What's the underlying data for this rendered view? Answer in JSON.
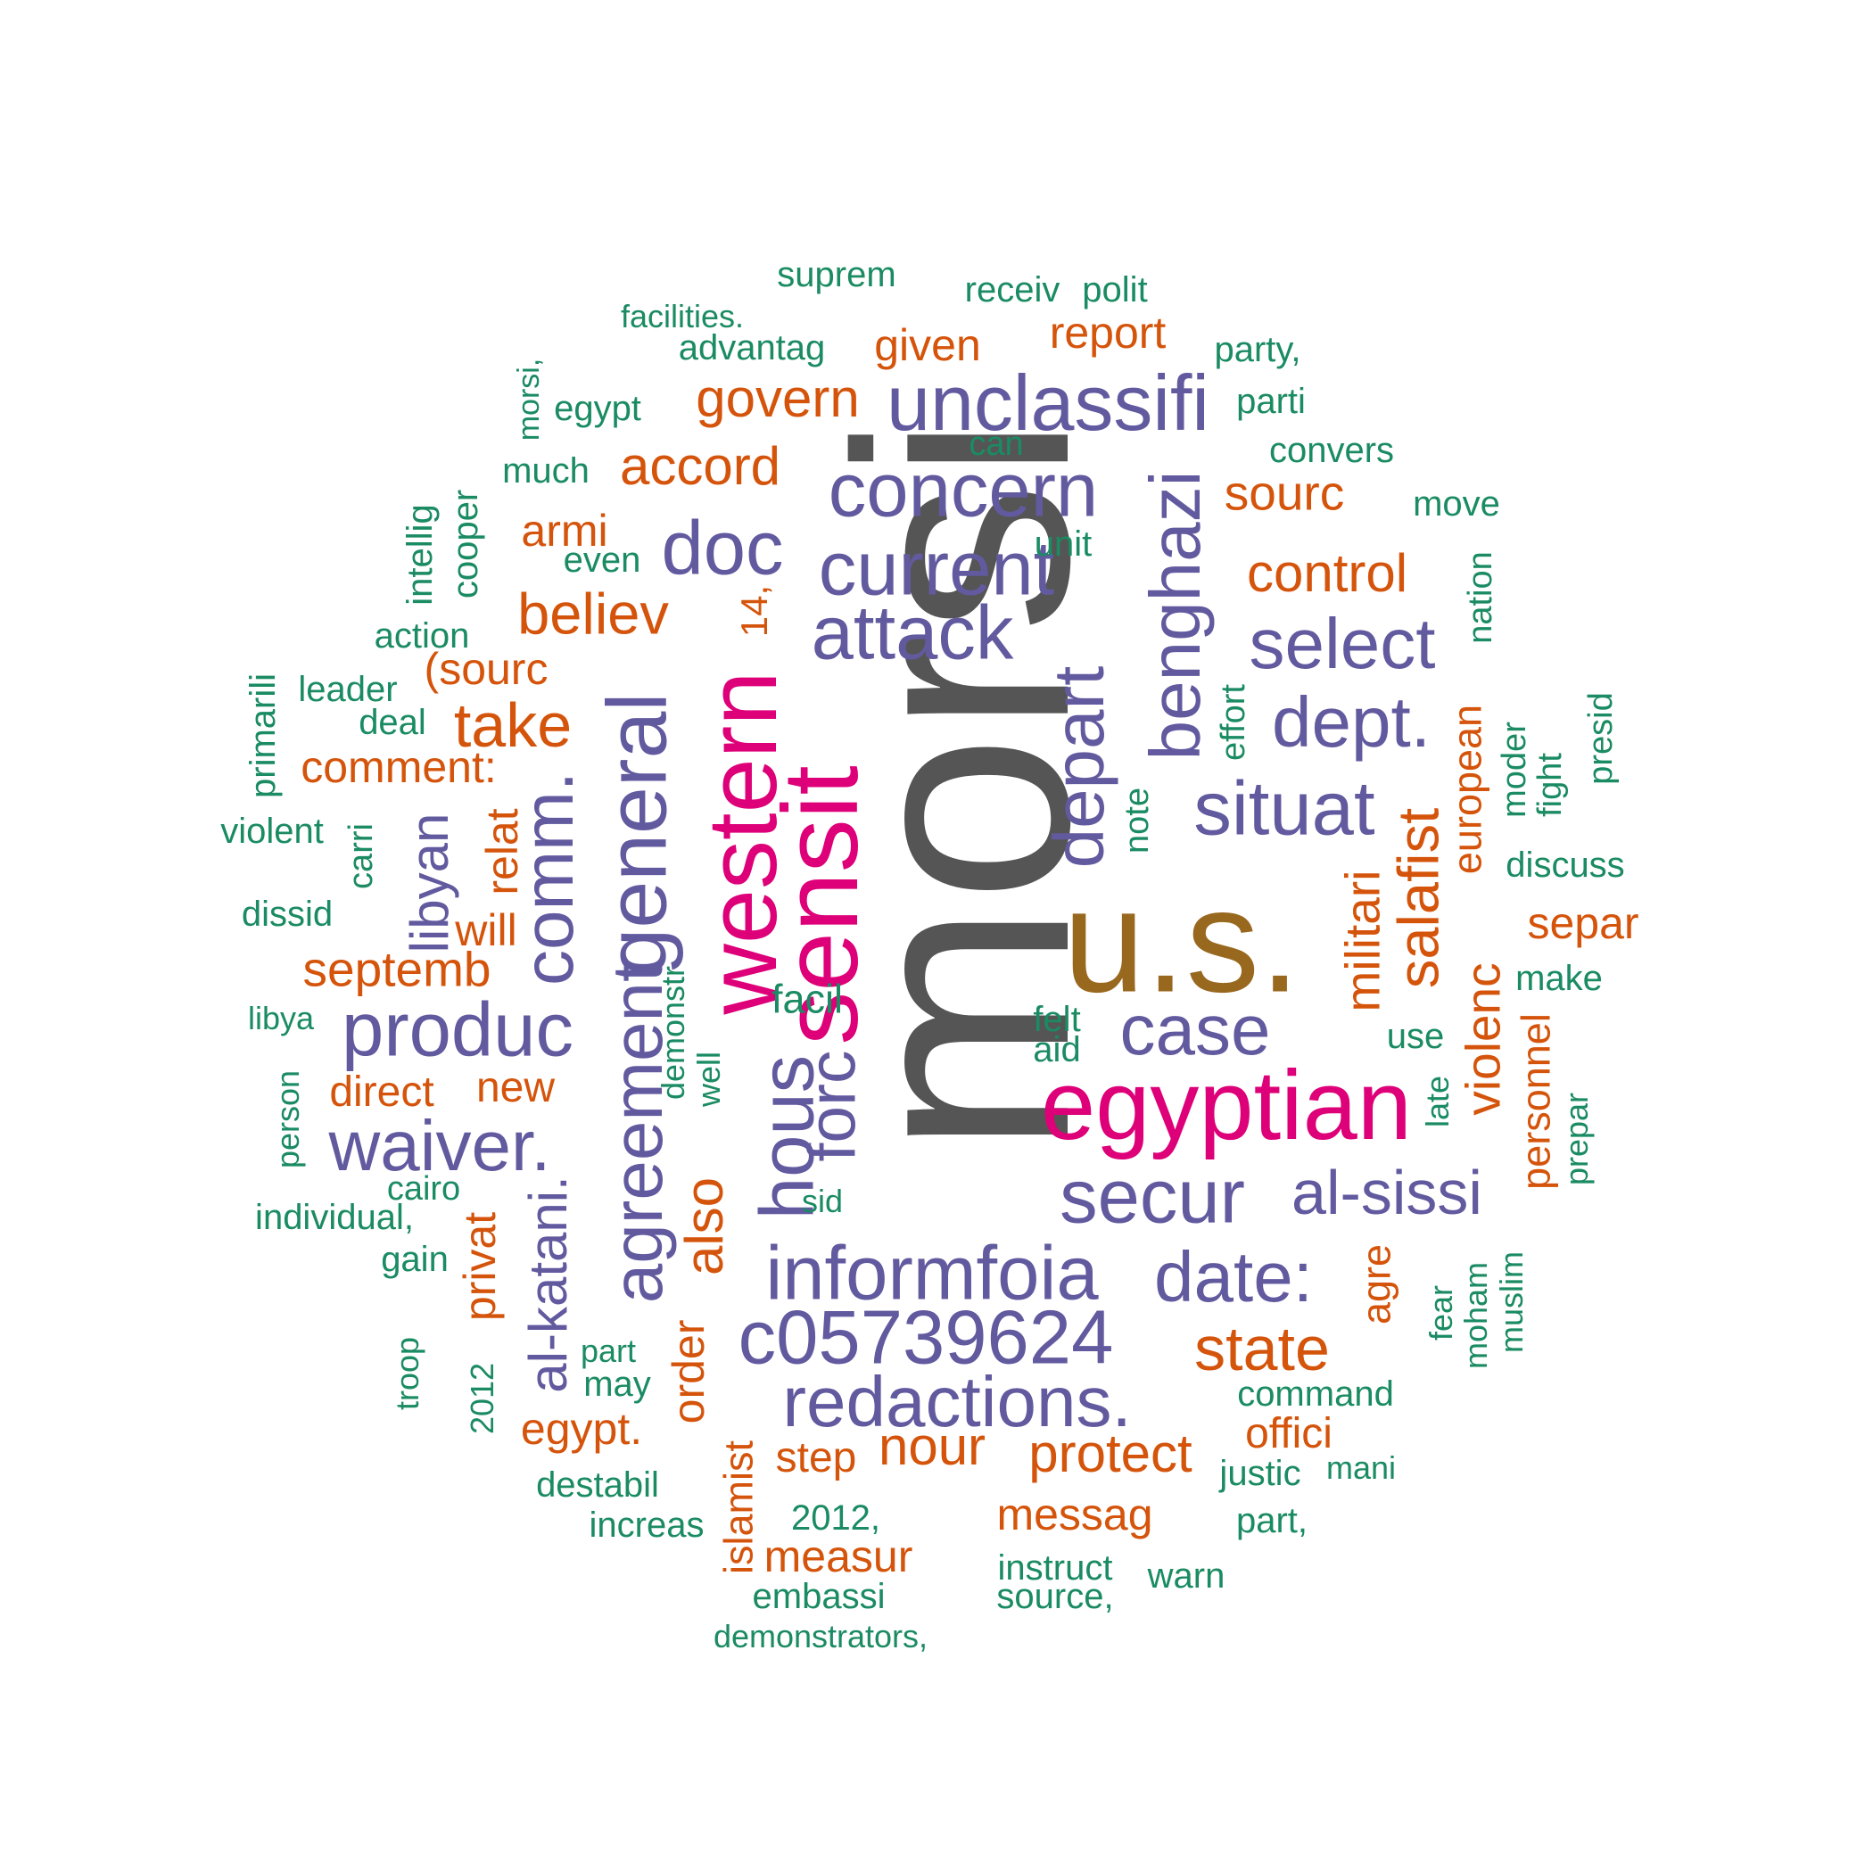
{
  "colors": {
    "gray": "#555555",
    "brown": "#98681E",
    "magenta": "#DE0079",
    "purple": "#625A9F",
    "orange": "#D5540B",
    "green": "#1A8B63"
  },
  "words": [
    {
      "text": "morsi",
      "color": "gray",
      "vertical": true
    },
    {
      "text": "u.s.",
      "color": "brown",
      "vertical": false
    },
    {
      "text": "egyptian",
      "color": "magenta",
      "vertical": false
    },
    {
      "text": "sensit",
      "color": "magenta",
      "vertical": true
    },
    {
      "text": "western",
      "color": "magenta",
      "vertical": true
    },
    {
      "text": "general",
      "color": "purple",
      "vertical": true
    },
    {
      "text": "agreement",
      "color": "purple",
      "vertical": true
    },
    {
      "text": "comm.",
      "color": "purple",
      "vertical": true
    },
    {
      "text": "unclassifi",
      "color": "purple",
      "vertical": false
    },
    {
      "text": "concern",
      "color": "purple",
      "vertical": false
    },
    {
      "text": "current",
      "color": "purple",
      "vertical": false
    },
    {
      "text": "attack",
      "color": "purple",
      "vertical": false
    },
    {
      "text": "benghazi",
      "color": "purple",
      "vertical": true
    },
    {
      "text": "depart",
      "color": "purple",
      "vertical": true
    },
    {
      "text": "situat",
      "color": "purple",
      "vertical": false
    },
    {
      "text": "select",
      "color": "purple",
      "vertical": false
    },
    {
      "text": "dept.",
      "color": "purple",
      "vertical": false
    },
    {
      "text": "doc",
      "color": "purple",
      "vertical": false
    },
    {
      "text": "produc",
      "color": "purple",
      "vertical": false
    },
    {
      "text": "waiver.",
      "color": "purple",
      "vertical": false
    },
    {
      "text": "hous",
      "color": "purple",
      "vertical": true
    },
    {
      "text": "forc",
      "color": "purple",
      "vertical": true
    },
    {
      "text": "case",
      "color": "purple",
      "vertical": false
    },
    {
      "text": "secur",
      "color": "purple",
      "vertical": false
    },
    {
      "text": "al-sissi",
      "color": "purple",
      "vertical": false
    },
    {
      "text": "informfoia",
      "color": "purple",
      "vertical": false
    },
    {
      "text": "date:",
      "color": "purple",
      "vertical": false
    },
    {
      "text": "c05739624",
      "color": "purple",
      "vertical": false
    },
    {
      "text": "redactions.",
      "color": "purple",
      "vertical": false
    },
    {
      "text": "al-katani.",
      "color": "purple",
      "vertical": true
    },
    {
      "text": "libyan",
      "color": "purple",
      "vertical": true
    },
    {
      "text": "govern",
      "color": "orange",
      "vertical": false
    },
    {
      "text": "accord",
      "color": "orange",
      "vertical": false
    },
    {
      "text": "given",
      "color": "orange",
      "vertical": false
    },
    {
      "text": "report",
      "color": "orange",
      "vertical": false
    },
    {
      "text": "sourc",
      "color": "orange",
      "vertical": false
    },
    {
      "text": "control",
      "color": "orange",
      "vertical": false
    },
    {
      "text": "armi",
      "color": "orange",
      "vertical": false
    },
    {
      "text": "believ",
      "color": "orange",
      "vertical": false
    },
    {
      "text": "14,",
      "color": "orange",
      "vertical": true
    },
    {
      "text": "(sourc",
      "color": "orange",
      "vertical": false
    },
    {
      "text": "take",
      "color": "orange",
      "vertical": false
    },
    {
      "text": "comment:",
      "color": "orange",
      "vertical": false
    },
    {
      "text": "septemb",
      "color": "orange",
      "vertical": false
    },
    {
      "text": "relat",
      "color": "orange",
      "vertical": true
    },
    {
      "text": "will",
      "color": "orange",
      "vertical": false
    },
    {
      "text": "direct",
      "color": "orange",
      "vertical": false
    },
    {
      "text": "new",
      "color": "orange",
      "vertical": false
    },
    {
      "text": "privat",
      "color": "orange",
      "vertical": true
    },
    {
      "text": "also",
      "color": "orange",
      "vertical": true
    },
    {
      "text": "order",
      "color": "orange",
      "vertical": true
    },
    {
      "text": "egypt.",
      "color": "orange",
      "vertical": false
    },
    {
      "text": "step",
      "color": "orange",
      "vertical": false
    },
    {
      "text": "nour",
      "color": "orange",
      "vertical": false
    },
    {
      "text": "protect",
      "color": "orange",
      "vertical": false
    },
    {
      "text": "messag",
      "color": "orange",
      "vertical": false
    },
    {
      "text": "measur",
      "color": "orange",
      "vertical": false
    },
    {
      "text": "islamist",
      "color": "orange",
      "vertical": true
    },
    {
      "text": "state",
      "color": "orange",
      "vertical": false
    },
    {
      "text": "offici",
      "color": "orange",
      "vertical": false
    },
    {
      "text": "agre",
      "color": "orange",
      "vertical": true
    },
    {
      "text": "militari",
      "color": "orange",
      "vertical": true
    },
    {
      "text": "salafist",
      "color": "orange",
      "vertical": true
    },
    {
      "text": "violenc",
      "color": "orange",
      "vertical": true
    },
    {
      "text": "european",
      "color": "orange",
      "vertical": true
    },
    {
      "text": "separ",
      "color": "orange",
      "vertical": false
    },
    {
      "text": "personnel",
      "color": "orange",
      "vertical": true
    },
    {
      "text": "suprem",
      "color": "green",
      "vertical": false
    },
    {
      "text": "receiv",
      "color": "green",
      "vertical": false
    },
    {
      "text": "polit",
      "color": "green",
      "vertical": false
    },
    {
      "text": "facilities.",
      "color": "green",
      "vertical": false
    },
    {
      "text": "advantag",
      "color": "green",
      "vertical": false
    },
    {
      "text": "party,",
      "color": "green",
      "vertical": false
    },
    {
      "text": "morsi,",
      "color": "green",
      "vertical": true
    },
    {
      "text": "egypt",
      "color": "green",
      "vertical": false
    },
    {
      "text": "parti",
      "color": "green",
      "vertical": false
    },
    {
      "text": "can",
      "color": "green",
      "vertical": false
    },
    {
      "text": "much",
      "color": "green",
      "vertical": false
    },
    {
      "text": "convers",
      "color": "green",
      "vertical": false
    },
    {
      "text": "move",
      "color": "green",
      "vertical": false
    },
    {
      "text": "intellig",
      "color": "green",
      "vertical": true
    },
    {
      "text": "cooper",
      "color": "green",
      "vertical": true
    },
    {
      "text": "even",
      "color": "green",
      "vertical": false
    },
    {
      "text": "unit",
      "color": "green",
      "vertical": false
    },
    {
      "text": "nation",
      "color": "green",
      "vertical": true
    },
    {
      "text": "action",
      "color": "green",
      "vertical": false
    },
    {
      "text": "leader",
      "color": "green",
      "vertical": false
    },
    {
      "text": "deal",
      "color": "green",
      "vertical": false
    },
    {
      "text": "primarili",
      "color": "green",
      "vertical": true
    },
    {
      "text": "effort",
      "color": "green",
      "vertical": true
    },
    {
      "text": "moder",
      "color": "green",
      "vertical": true
    },
    {
      "text": "fight",
      "color": "green",
      "vertical": true
    },
    {
      "text": "presid",
      "color": "green",
      "vertical": true
    },
    {
      "text": "violent",
      "color": "green",
      "vertical": false
    },
    {
      "text": "carri",
      "color": "green",
      "vertical": true
    },
    {
      "text": "note",
      "color": "green",
      "vertical": true
    },
    {
      "text": "discuss",
      "color": "green",
      "vertical": false
    },
    {
      "text": "dissid",
      "color": "green",
      "vertical": false
    },
    {
      "text": "demonstr",
      "color": "green",
      "vertical": true
    },
    {
      "text": "well",
      "color": "green",
      "vertical": true
    },
    {
      "text": "facil",
      "color": "green",
      "vertical": false
    },
    {
      "text": "make",
      "color": "green",
      "vertical": false
    },
    {
      "text": "felt",
      "color": "green",
      "vertical": false
    },
    {
      "text": "aid",
      "color": "green",
      "vertical": false
    },
    {
      "text": "use",
      "color": "green",
      "vertical": false
    },
    {
      "text": "libya",
      "color": "green",
      "vertical": false
    },
    {
      "text": "person",
      "color": "green",
      "vertical": true
    },
    {
      "text": "late",
      "color": "green",
      "vertical": true
    },
    {
      "text": "prepar",
      "color": "green",
      "vertical": true
    },
    {
      "text": "cairo",
      "color": "green",
      "vertical": false
    },
    {
      "text": "sid",
      "color": "green",
      "vertical": false
    },
    {
      "text": "individual,",
      "color": "green",
      "vertical": false
    },
    {
      "text": "gain",
      "color": "green",
      "vertical": false
    },
    {
      "text": "troop",
      "color": "green",
      "vertical": true
    },
    {
      "text": "2012",
      "color": "green",
      "vertical": true
    },
    {
      "text": "part",
      "color": "green",
      "vertical": false
    },
    {
      "text": "may",
      "color": "green",
      "vertical": false
    },
    {
      "text": "fear",
      "color": "green",
      "vertical": true
    },
    {
      "text": "moham",
      "color": "green",
      "vertical": true
    },
    {
      "text": "muslim",
      "color": "green",
      "vertical": true
    },
    {
      "text": "command",
      "color": "green",
      "vertical": false
    },
    {
      "text": "justic",
      "color": "green",
      "vertical": false
    },
    {
      "text": "mani",
      "color": "green",
      "vertical": false
    },
    {
      "text": "destabil",
      "color": "green",
      "vertical": false
    },
    {
      "text": "increas",
      "color": "green",
      "vertical": false
    },
    {
      "text": "2012,",
      "color": "green",
      "vertical": false
    },
    {
      "text": "part,",
      "color": "green",
      "vertical": false
    },
    {
      "text": "instruct",
      "color": "green",
      "vertical": false
    },
    {
      "text": "warn",
      "color": "green",
      "vertical": false
    },
    {
      "text": "embassi",
      "color": "green",
      "vertical": false
    },
    {
      "text": "source,",
      "color": "green",
      "vertical": false
    },
    {
      "text": "demonstrators,",
      "color": "green",
      "vertical": false
    }
  ]
}
